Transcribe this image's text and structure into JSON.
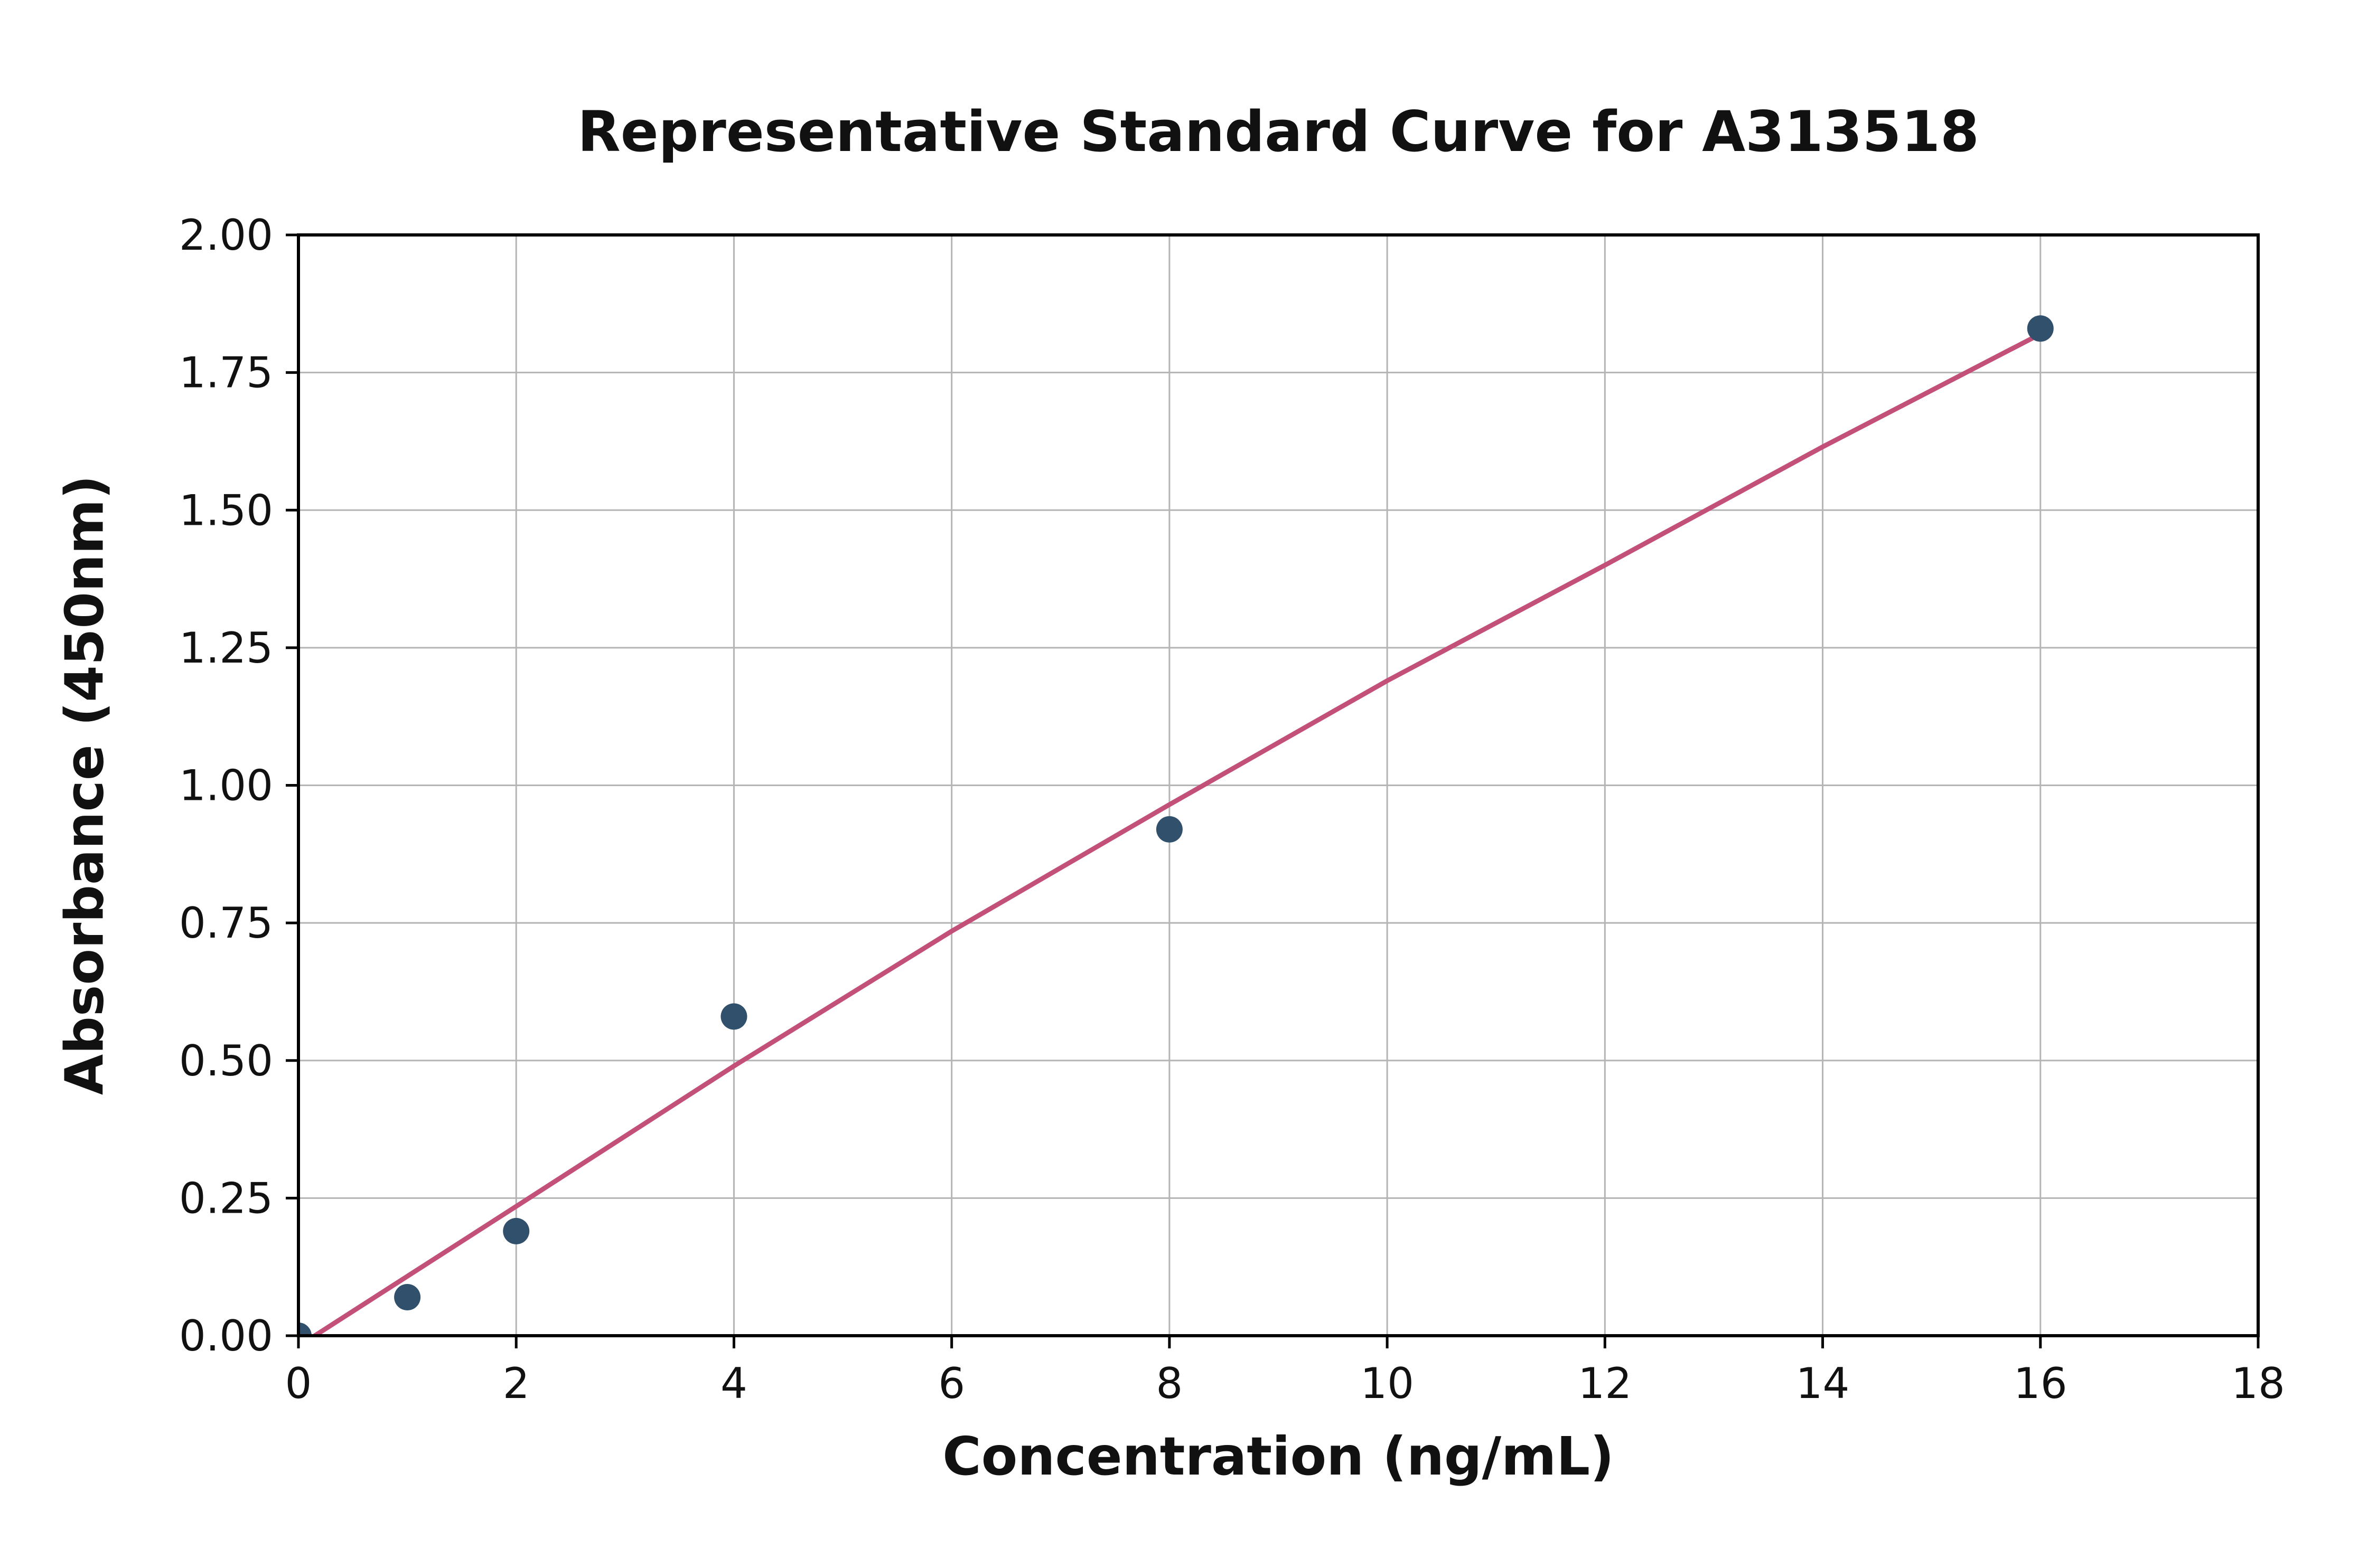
{
  "chart_data": {
    "type": "scatter",
    "title": "Representative Standard Curve for A313518",
    "xlabel": "Concentration (ng/mL)",
    "ylabel": "Absorbance (450nm)",
    "xlim": [
      0,
      18
    ],
    "ylim": [
      0,
      2.0
    ],
    "x_ticks": [
      0,
      2,
      4,
      6,
      8,
      10,
      12,
      14,
      16,
      18
    ],
    "x_tick_labels": [
      "0",
      "2",
      "4",
      "6",
      "8",
      "10",
      "12",
      "14",
      "16",
      "18"
    ],
    "y_ticks": [
      0,
      0.25,
      0.5,
      0.75,
      1.0,
      1.25,
      1.5,
      1.75,
      2.0
    ],
    "y_tick_labels": [
      "0.00",
      "0.25",
      "0.50",
      "0.75",
      "1.00",
      "1.25",
      "1.50",
      "1.75",
      "2.00"
    ],
    "grid": true,
    "legend": false,
    "series": [
      {
        "name": "standard-points",
        "type": "scatter",
        "color": "#31506c",
        "x": [
          0,
          1,
          2,
          4,
          8,
          16
        ],
        "y": [
          0.0,
          0.07,
          0.19,
          0.58,
          0.92,
          1.83
        ]
      },
      {
        "name": "fit-line",
        "type": "line",
        "color": "#c25078",
        "x": [
          0.15,
          2,
          4,
          6,
          8,
          10,
          12,
          14,
          16
        ],
        "y": [
          0.0,
          0.235,
          0.49,
          0.735,
          0.965,
          1.19,
          1.4,
          1.615,
          1.82
        ]
      }
    ],
    "styles": {
      "grid_color": "#b5b5b5",
      "axis_color": "#000000",
      "text_color": "#111111",
      "background": "#ffffff"
    }
  }
}
